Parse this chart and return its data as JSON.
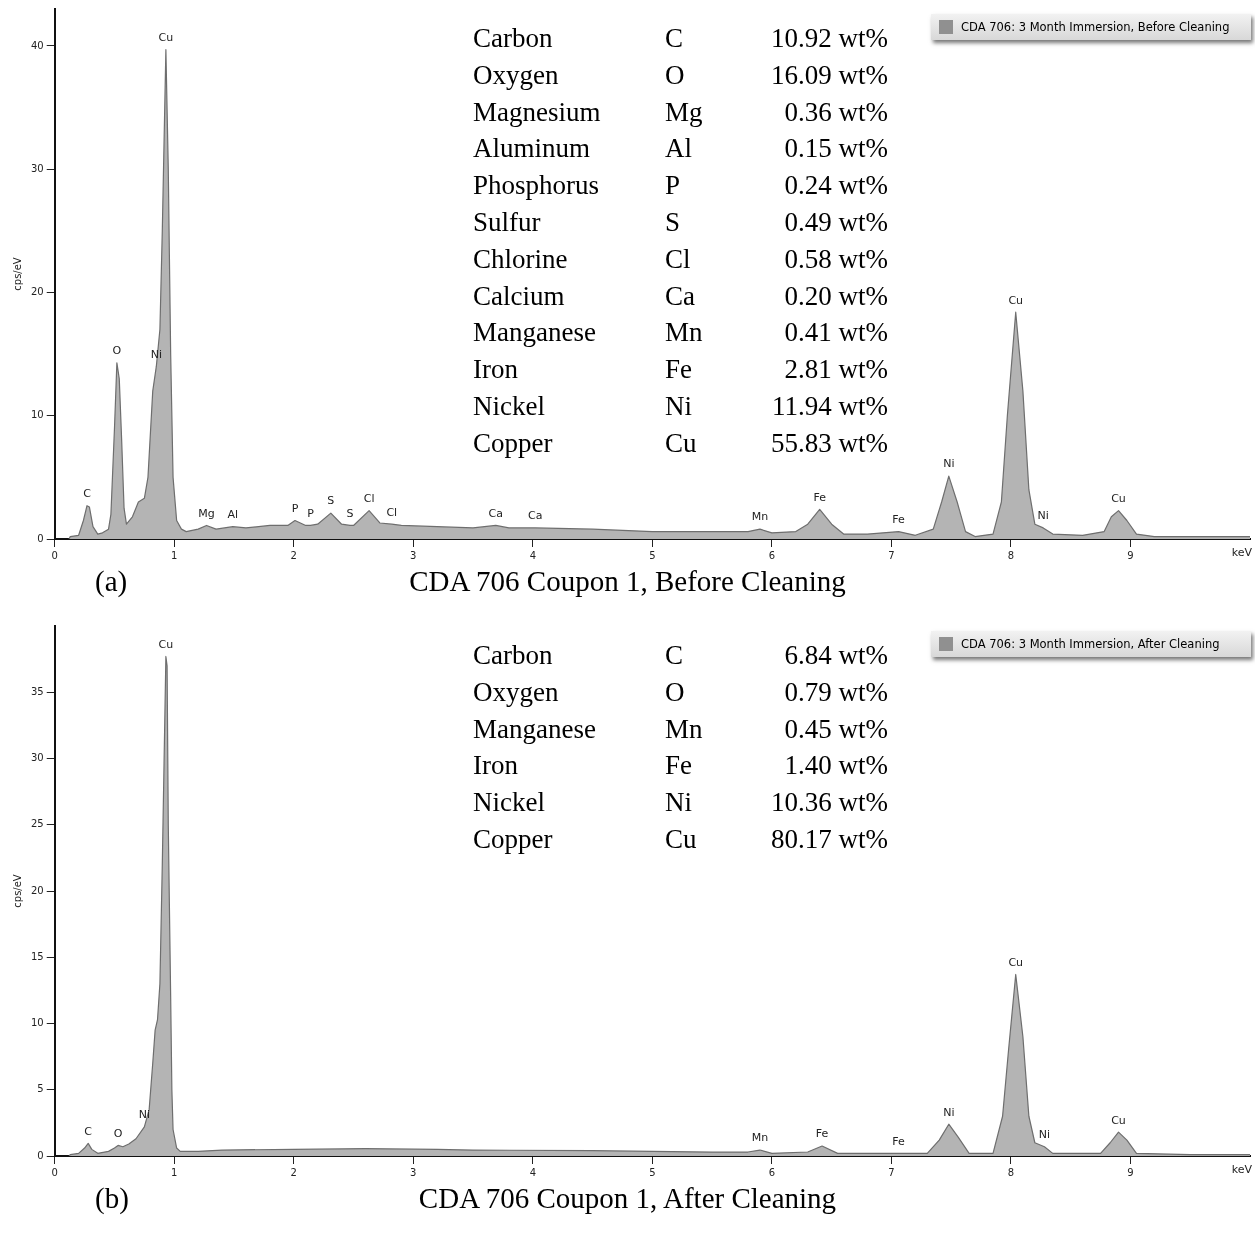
{
  "chart_data": [
    {
      "type": "area",
      "title": "CDA 706 Coupon 1, Before Cleaning",
      "subtitle": "(a)",
      "xlabel": "keV",
      "ylabel": "cps/eV",
      "xlim": [
        0,
        10
      ],
      "xticks": [
        0,
        1,
        2,
        3,
        4,
        5,
        6,
        7,
        8,
        9
      ],
      "ylim": [
        0,
        43
      ],
      "yticks": [
        0,
        10,
        20,
        30,
        40
      ],
      "legend": "top right",
      "x": [
        0.12,
        0.13,
        0.2,
        0.24,
        0.27,
        0.29,
        0.32,
        0.36,
        0.4,
        0.45,
        0.47,
        0.5,
        0.52,
        0.54,
        0.56,
        0.58,
        0.6,
        0.65,
        0.7,
        0.75,
        0.78,
        0.82,
        0.85,
        0.88,
        0.9,
        0.93,
        0.95,
        0.97,
        0.99,
        1.02,
        1.06,
        1.1,
        1.2,
        1.27,
        1.35,
        1.49,
        1.6,
        1.8,
        1.95,
        2.01,
        2.1,
        2.14,
        2.2,
        2.31,
        2.4,
        2.47,
        2.5,
        2.63,
        2.72,
        2.82,
        2.9,
        3.2,
        3.5,
        3.69,
        3.8,
        4.02,
        4.5,
        5.0,
        5.5,
        5.8,
        5.9,
        6.0,
        6.2,
        6.3,
        6.4,
        6.5,
        6.6,
        6.8,
        7.06,
        7.2,
        7.35,
        7.42,
        7.48,
        7.55,
        7.62,
        7.7,
        7.85,
        7.92,
        7.97,
        8.04,
        8.1,
        8.15,
        8.2,
        8.27,
        8.35,
        8.6,
        8.78,
        8.84,
        8.9,
        8.97,
        9.05,
        9.2,
        9.5,
        10
      ],
      "series": [
        {
          "name": "CDA 706: 3 Month Immersion, Before Cleaning",
          "color": "#b4b4b4",
          "values": [
            0,
            0.2,
            0.3,
            1.5,
            2.7,
            2.6,
            1.0,
            0.4,
            0.5,
            0.8,
            2,
            9,
            14.3,
            13,
            8,
            2.5,
            1.2,
            1.8,
            3,
            3.3,
            5,
            12,
            14,
            17,
            25,
            39.7,
            30,
            15,
            5,
            1.5,
            0.8,
            0.6,
            0.8,
            1.1,
            0.8,
            1.0,
            0.9,
            1.1,
            1.1,
            1.5,
            1.1,
            1.1,
            1.2,
            2.1,
            1.2,
            1.1,
            1.1,
            2.3,
            1.3,
            1.2,
            1.1,
            1.0,
            0.9,
            1.1,
            0.9,
            0.9,
            0.8,
            0.6,
            0.6,
            0.6,
            0.8,
            0.5,
            0.6,
            1.2,
            2.4,
            1.2,
            0.4,
            0.4,
            0.6,
            0.3,
            0.8,
            3,
            5.1,
            3,
            0.6,
            0.2,
            0.4,
            3,
            10,
            18.4,
            12,
            4,
            1.2,
            0.9,
            0.4,
            0.3,
            0.6,
            1.8,
            2.3,
            1.5,
            0.4,
            0.2,
            0.2,
            0.2
          ]
        }
      ],
      "annotations": [
        "Carbon\tC\t10.92 wt%",
        "Oxygen\tO\t16.09 wt%",
        "Magnesium\tMg\t0.36 wt%",
        "Aluminum\tAl\t0.15 wt%",
        "Phosphorus\tP\t0.24 wt%",
        "Sulfur\tS\t0.49 wt%",
        "Chlorine\tCl\t0.58 wt%",
        "Calcium\tCa\t0.20 wt%",
        "Manganese\tMn\t0.41 wt%",
        "Iron\tFe\t2.81 wt%",
        "Nickel\tNi\t11.94 wt%",
        "Copper\tCu\t55.83 wt%",
        {
          "text": "C",
          "x": 0.27,
          "y": 2.7
        },
        {
          "text": "O",
          "x": 0.52,
          "y": 14.3
        },
        {
          "text": "Ni",
          "x": 0.85,
          "y": 14
        },
        {
          "text": "Cu",
          "x": 0.93,
          "y": 39.7
        },
        {
          "text": "Mg",
          "x": 1.27,
          "y": 1.1
        },
        {
          "text": "Al",
          "x": 1.49,
          "y": 1.0
        },
        {
          "text": "P",
          "x": 2.01,
          "y": 1.5
        },
        {
          "text": "P",
          "x": 2.14,
          "y": 1.1
        },
        {
          "text": "S",
          "x": 2.31,
          "y": 2.1
        },
        {
          "text": "S",
          "x": 2.47,
          "y": 1.1
        },
        {
          "text": "Cl",
          "x": 2.63,
          "y": 2.3
        },
        {
          "text": "Cl",
          "x": 2.82,
          "y": 1.2
        },
        {
          "text": "Ca",
          "x": 3.69,
          "y": 1.1
        },
        {
          "text": "Ca",
          "x": 4.02,
          "y": 0.9
        },
        {
          "text": "Mn",
          "x": 5.9,
          "y": 0.8
        },
        {
          "text": "Fe",
          "x": 6.4,
          "y": 2.4
        },
        {
          "text": "Fe",
          "x": 7.06,
          "y": 0.6
        },
        {
          "text": "Ni",
          "x": 7.48,
          "y": 5.1
        },
        {
          "text": "Cu",
          "x": 8.04,
          "y": 18.4
        },
        {
          "text": "Ni",
          "x": 8.27,
          "y": 0.9
        },
        {
          "text": "Cu",
          "x": 8.9,
          "y": 2.3
        }
      ]
    },
    {
      "type": "area",
      "title": "CDA 706 Coupon 1, After Cleaning",
      "subtitle": "(b)",
      "xlabel": "keV",
      "ylabel": "cps/eV",
      "xlim": [
        0,
        10
      ],
      "xticks": [
        0,
        1,
        2,
        3,
        4,
        5,
        6,
        7,
        8,
        9
      ],
      "ylim": [
        0,
        40
      ],
      "yticks": [
        0,
        5,
        10,
        15,
        20,
        25,
        30,
        35
      ],
      "legend": "top right",
      "x": [
        0.12,
        0.13,
        0.2,
        0.25,
        0.28,
        0.31,
        0.36,
        0.45,
        0.5,
        0.53,
        0.57,
        0.62,
        0.68,
        0.75,
        0.79,
        0.82,
        0.84,
        0.86,
        0.88,
        0.9,
        0.93,
        0.94,
        0.95,
        0.97,
        0.98,
        0.99,
        1.02,
        1.05,
        1.2,
        1.4,
        2.0,
        2.6,
        3.2,
        3.5,
        4.5,
        5.5,
        5.8,
        5.9,
        6.0,
        6.3,
        6.42,
        6.55,
        7.06,
        7.3,
        7.4,
        7.48,
        7.56,
        7.65,
        7.85,
        7.93,
        7.98,
        8.04,
        8.1,
        8.15,
        8.2,
        8.28,
        8.35,
        8.75,
        8.83,
        8.9,
        8.97,
        9.05,
        9.5,
        10
      ],
      "series": [
        {
          "name": "CDA 706: 3 Month Immersion, After Cleaning",
          "color": "#b4b4b4",
          "values": [
            0,
            0.1,
            0.2,
            0.6,
            0.95,
            0.5,
            0.2,
            0.35,
            0.6,
            0.8,
            0.7,
            0.9,
            1.3,
            2.2,
            3.5,
            7,
            9.5,
            10.3,
            13,
            22,
            37.7,
            37,
            25,
            12,
            5,
            2,
            0.6,
            0.35,
            0.35,
            0.45,
            0.5,
            0.55,
            0.5,
            0.45,
            0.4,
            0.3,
            0.3,
            0.45,
            0.2,
            0.3,
            0.75,
            0.2,
            0.2,
            0.2,
            1.2,
            2.4,
            1.4,
            0.2,
            0.2,
            3,
            8,
            13.7,
            9,
            3,
            1.0,
            0.7,
            0.2,
            0.2,
            1.0,
            1.8,
            1.2,
            0.2,
            0.1,
            0.1
          ]
        }
      ],
      "annotations": [
        "Carbon\tC\t6.84 wt%",
        "Oxygen\tO\t0.79 wt%",
        "Manganese\tMn\t0.45 wt%",
        "Iron\tFe\t1.40 wt%",
        "Nickel\tNi\t10.36 wt%",
        "Copper\tCu\t80.17 wt%",
        {
          "text": "C",
          "x": 0.28,
          "y": 0.95
        },
        {
          "text": "O",
          "x": 0.53,
          "y": 0.8
        },
        {
          "text": "Ni",
          "x": 0.75,
          "y": 2.2
        },
        {
          "text": "Cu",
          "x": 0.93,
          "y": 37.7
        },
        {
          "text": "Mn",
          "x": 5.9,
          "y": 0.45
        },
        {
          "text": "Fe",
          "x": 6.42,
          "y": 0.75
        },
        {
          "text": "Fe",
          "x": 7.06,
          "y": 0.2
        },
        {
          "text": "Ni",
          "x": 7.48,
          "y": 2.4
        },
        {
          "text": "Cu",
          "x": 8.04,
          "y": 13.7
        },
        {
          "text": "Ni",
          "x": 8.28,
          "y": 0.7
        },
        {
          "text": "Cu",
          "x": 8.9,
          "y": 1.8
        }
      ]
    }
  ]
}
